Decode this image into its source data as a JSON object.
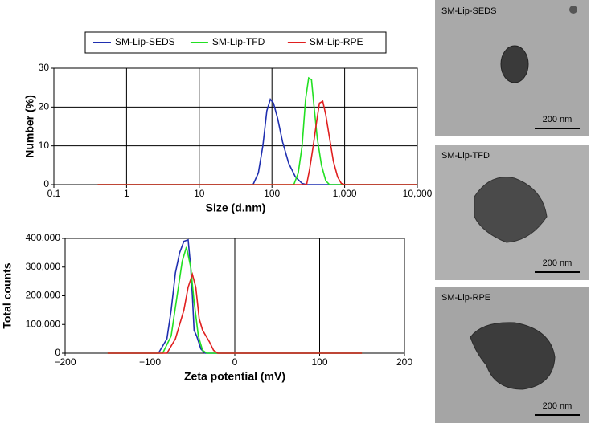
{
  "chart_data": [
    {
      "type": "line",
      "xlabel": "Size (d.nm)",
      "ylabel": "Number (%)",
      "xlog": true,
      "grid": "both",
      "legend": "top",
      "xlim": [
        0.1,
        10000
      ],
      "ylim": [
        0,
        30
      ],
      "xticks": [
        0.1,
        1,
        10,
        100,
        {
          "value": 1000,
          "label": "1,000"
        },
        {
          "value": 10000,
          "label": "10,000"
        }
      ],
      "yticks": [
        0,
        10,
        20,
        30
      ],
      "series": [
        {
          "name": "SM-Lip-SEDS",
          "color": "#1f2fb0",
          "x": [
            0.4,
            55,
            65,
            75,
            85,
            95,
            105,
            120,
            140,
            170,
            210,
            260,
            300,
            10000
          ],
          "values": [
            0,
            0,
            3,
            10,
            19,
            22,
            21,
            17,
            11,
            5.5,
            2,
            0.3,
            0,
            0
          ]
        },
        {
          "name": "SM-Lip-TFD",
          "color": "#22e022",
          "x": [
            0.4,
            200,
            230,
            260,
            290,
            320,
            350,
            380,
            420,
            480,
            550,
            620,
            10000
          ],
          "values": [
            0,
            0,
            3,
            10,
            22,
            27.5,
            27,
            20,
            12,
            5,
            1,
            0,
            0
          ]
        },
        {
          "name": "SM-Lip-RPE",
          "color": "#e01f1f",
          "x": [
            0.4,
            300,
            330,
            370,
            410,
            450,
            500,
            550,
            620,
            700,
            800,
            900,
            1000,
            10000
          ],
          "values": [
            0,
            0,
            4,
            10,
            16,
            21,
            21.5,
            18,
            12,
            6,
            2,
            0.3,
            0,
            0
          ]
        }
      ]
    },
    {
      "type": "line",
      "xlabel": "Zeta potential (mV)",
      "ylabel": "Total counts",
      "xlog": false,
      "grid": "x",
      "xlim": [
        -200,
        200
      ],
      "ylim": [
        0,
        400000
      ],
      "xticks": [
        {
          "value": -200,
          "label": "−200"
        },
        {
          "value": -100,
          "label": "−100"
        },
        0,
        100,
        200
      ],
      "yticks": [
        0,
        {
          "value": 100000,
          "label": "100,000"
        },
        {
          "value": 200000,
          "label": "200,000"
        },
        {
          "value": 300000,
          "label": "300,000"
        },
        {
          "value": 400000,
          "label": "400,000"
        }
      ],
      "series": [
        {
          "color": "#1f2fb0",
          "x": [
            -150,
            -90,
            -80,
            -75,
            -70,
            -65,
            -60,
            -55,
            -52,
            -50,
            -48,
            -45,
            -40,
            -35,
            150
          ],
          "values": [
            0,
            0,
            50000,
            150000,
            280000,
            350000,
            390000,
            395000,
            300000,
            200000,
            80000,
            60000,
            15000,
            0,
            0
          ]
        },
        {
          "color": "#22e022",
          "x": [
            -150,
            -85,
            -75,
            -68,
            -62,
            -57,
            -52,
            -48,
            -43,
            -38,
            -33,
            150
          ],
          "values": [
            0,
            0,
            60000,
            200000,
            320000,
            370000,
            300000,
            180000,
            60000,
            10000,
            0,
            0
          ]
        },
        {
          "color": "#e01f1f",
          "x": [
            -150,
            -80,
            -70,
            -60,
            -55,
            -50,
            -46,
            -42,
            -38,
            -30,
            -25,
            -20,
            150
          ],
          "values": [
            0,
            0,
            50000,
            150000,
            230000,
            275000,
            230000,
            120000,
            80000,
            40000,
            10000,
            0,
            0
          ]
        }
      ]
    }
  ],
  "images": [
    {
      "label": "SM-Lip-SEDS",
      "scale": "200 nm"
    },
    {
      "label": "SM-Lip-TFD",
      "scale": "200 nm"
    },
    {
      "label": "SM-Lip-RPE",
      "scale": "200 nm"
    }
  ]
}
